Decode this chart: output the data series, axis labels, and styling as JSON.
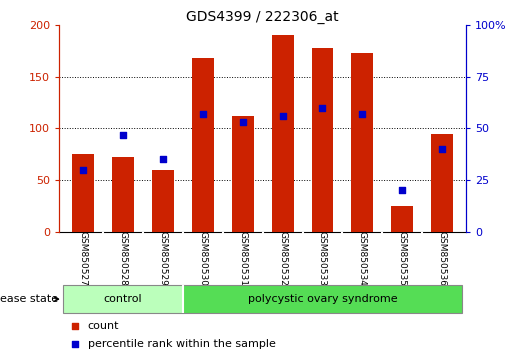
{
  "title": "GDS4399 / 222306_at",
  "samples": [
    "GSM850527",
    "GSM850528",
    "GSM850529",
    "GSM850530",
    "GSM850531",
    "GSM850532",
    "GSM850533",
    "GSM850534",
    "GSM850535",
    "GSM850536"
  ],
  "counts": [
    75,
    72,
    60,
    168,
    112,
    190,
    178,
    173,
    25,
    95
  ],
  "percentiles": [
    30,
    47,
    35,
    57,
    53,
    56,
    60,
    57,
    20,
    40
  ],
  "bar_color": "#CC2200",
  "dot_color": "#0000CC",
  "left_ylim": [
    0,
    200
  ],
  "right_ylim": [
    0,
    100
  ],
  "left_yticks": [
    0,
    50,
    100,
    150,
    200
  ],
  "right_yticks": [
    0,
    25,
    50,
    75,
    100
  ],
  "right_yticklabels": [
    "0",
    "25",
    "50",
    "75",
    "100%"
  ],
  "grid_values": [
    50,
    100,
    150
  ],
  "control_n": 3,
  "disease_n": 7,
  "control_label": "control",
  "disease_label": "polycystic ovary syndrome",
  "disease_state_label": "disease state",
  "legend_count": "count",
  "legend_percentile": "percentile rank within the sample",
  "control_color": "#BBFFBB",
  "disease_color": "#55DD55",
  "xlabels_bg": "#CCCCCC",
  "bar_width": 0.55
}
